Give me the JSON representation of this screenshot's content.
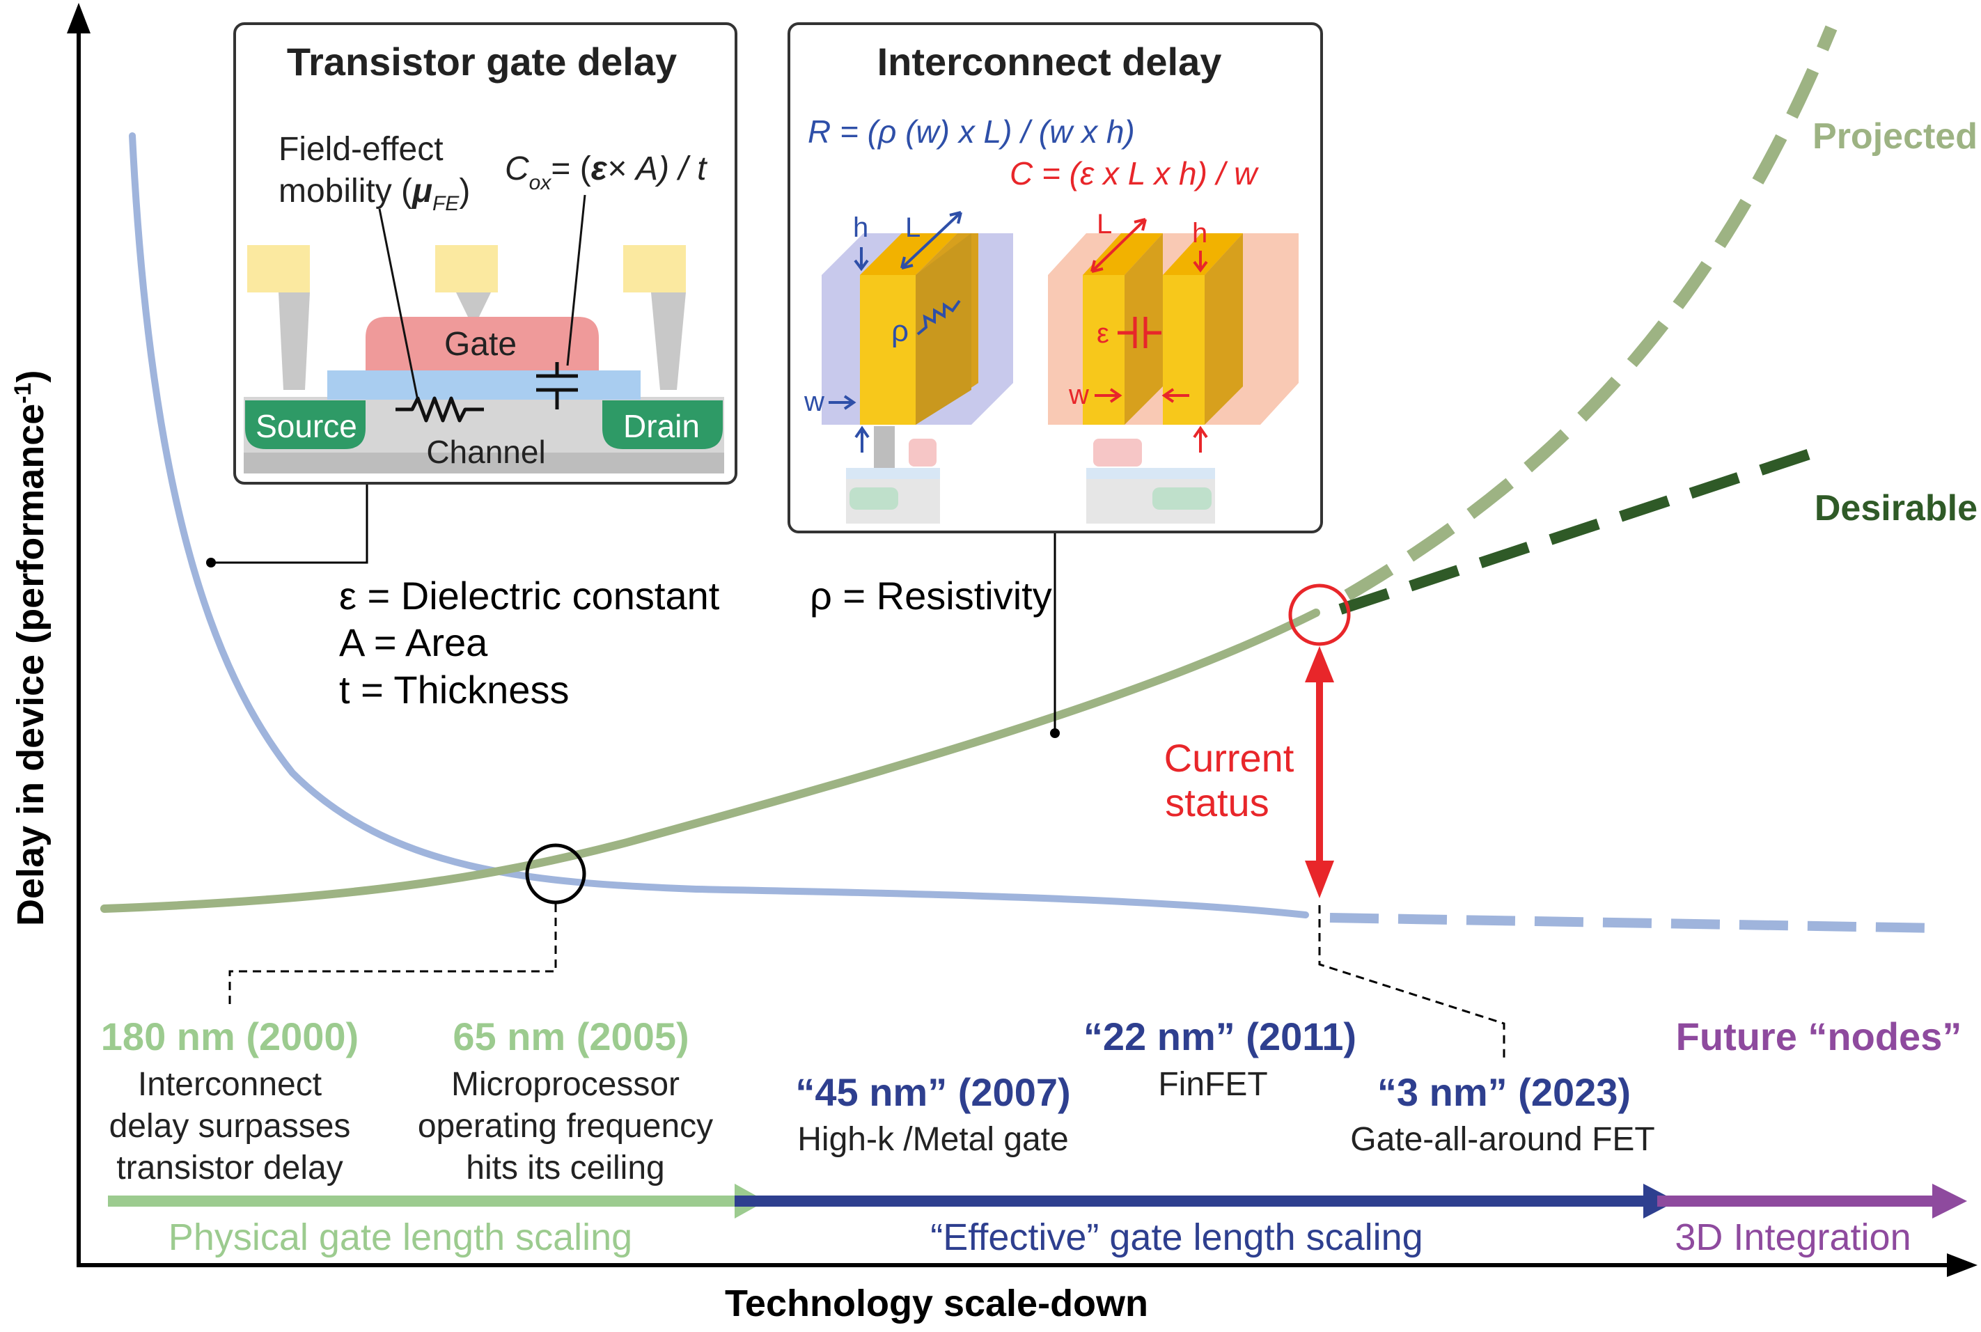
{
  "axes": {
    "y_label": "Delay in device (performance",
    "y_label_sup": "-1",
    "y_label_close": ")",
    "x_label": "Technology scale-down"
  },
  "transistor_box": {
    "title": "Transistor gate delay",
    "mobility_line1": "Field-effect",
    "mobility_line2": "mobility (",
    "mobility_mu": "μ",
    "mobility_sub": "FE",
    "mobility_close": ")",
    "cox_c": "C",
    "cox_sub": "ox",
    "cox_eq": "= (",
    "cox_eps": "ε",
    "cox_rest": "× A) / t",
    "gate": "Gate",
    "source": "Source",
    "drain": "Drain",
    "channel": "Channel"
  },
  "interconnect_box": {
    "title": "Interconnect delay",
    "r_formula": "R = (ρ (w) x L) / (w x h)",
    "c_formula": "C = (ε x L x h) / w",
    "h": "h",
    "l": "L",
    "rho": "ρ",
    "w": "w",
    "eps": "ε"
  },
  "legend_defs": {
    "epsilon": "ε = Dielectric constant",
    "area": "A = Area",
    "thickness": "t = Thickness",
    "rho": "ρ = Resistivity"
  },
  "curve_labels": {
    "projected": "Projected",
    "desirable": "Desirable",
    "current_status_1": "Current",
    "current_status_2": "status"
  },
  "nodes": [
    {
      "name": "180 nm (2000)",
      "desc": [
        "Interconnect",
        "delay surpasses",
        "transistor delay"
      ]
    },
    {
      "name": "65 nm (2005)",
      "desc": [
        "Microprocessor",
        "operating frequency",
        "hits its ceiling"
      ]
    },
    {
      "name": "“45 nm” (2007)",
      "desc": [
        "High-k /Metal gate"
      ]
    },
    {
      "name": "“22 nm” (2011)",
      "desc": [
        "FinFET"
      ]
    },
    {
      "name": "“3 nm” (2023)",
      "desc": [
        "Gate-all-around FET"
      ]
    },
    {
      "name": "Future “nodes”",
      "desc": []
    }
  ],
  "eras": {
    "physical": "Physical gate length scaling",
    "effective": "“Effective” gate length scaling",
    "integration": "3D Integration"
  },
  "colors": {
    "transistor_curve": "#9fb4dc",
    "interconnect_curve": "#9db383",
    "desirable": "#2f5a27",
    "current_status": "#e8262a",
    "node_green": "#9ccb8f",
    "node_blue": "#2e3f8f",
    "node_purple": "#8e4a9e",
    "gate_red": "#ef9a9a",
    "channel_blue": "#a9cdf0",
    "contact_green": "#2e9a66",
    "contact_yellow": "#fbe9a0",
    "metal_yellow": "#f7c81b"
  }
}
